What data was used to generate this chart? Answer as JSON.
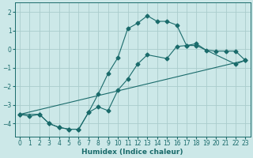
{
  "xlabel": "Humidex (Indice chaleur)",
  "bg_color": "#cce8e8",
  "grid_color": "#aacccc",
  "line_color": "#1a6b6b",
  "xlim": [
    -0.5,
    23.5
  ],
  "ylim": [
    -4.7,
    2.5
  ],
  "xticks": [
    0,
    1,
    2,
    3,
    4,
    5,
    6,
    7,
    8,
    9,
    10,
    11,
    12,
    13,
    14,
    15,
    16,
    17,
    18,
    19,
    20,
    21,
    22,
    23
  ],
  "yticks": [
    -4,
    -3,
    -2,
    -1,
    0,
    1,
    2
  ],
  "line1_x": [
    0,
    1,
    2,
    3,
    4,
    5,
    6,
    7,
    8,
    9,
    10,
    11,
    12,
    13,
    14,
    15,
    16,
    17,
    18,
    19,
    20,
    21,
    22,
    23
  ],
  "line1_y": [
    -3.5,
    -3.6,
    -3.5,
    -4.0,
    -4.2,
    -4.3,
    -4.3,
    -3.4,
    -2.4,
    -1.3,
    -0.45,
    1.1,
    1.4,
    1.8,
    1.5,
    1.5,
    1.3,
    0.2,
    0.3,
    -0.05,
    -0.1,
    -0.1,
    -0.1,
    -0.6
  ],
  "line2_x": [
    0,
    2,
    3,
    4,
    5,
    6,
    7,
    8,
    9,
    10,
    11,
    12,
    13,
    15,
    16,
    17,
    18,
    22,
    23
  ],
  "line2_y": [
    -3.5,
    -3.5,
    -4.0,
    -4.2,
    -4.3,
    -4.3,
    -3.4,
    -3.1,
    -3.3,
    -2.2,
    -1.6,
    -0.8,
    -0.3,
    -0.5,
    0.15,
    0.2,
    0.2,
    -0.8,
    -0.6
  ],
  "line3_x": [
    0,
    23
  ],
  "line3_y": [
    -3.5,
    -0.6
  ]
}
